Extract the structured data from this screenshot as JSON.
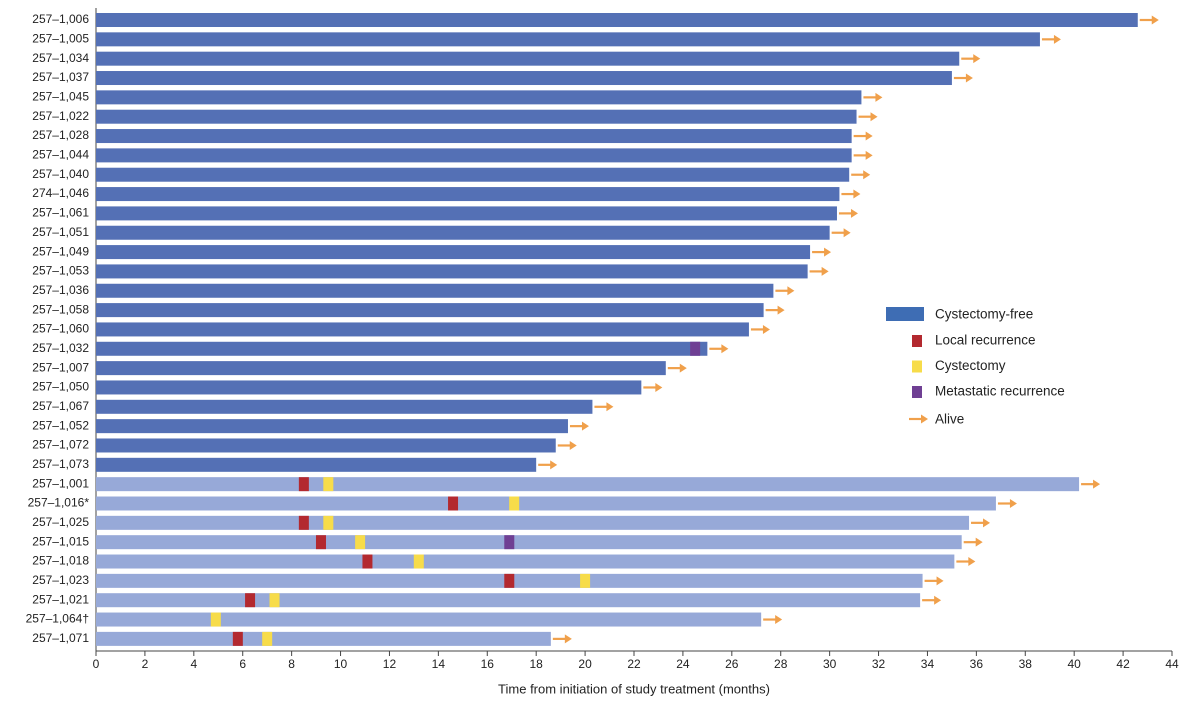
{
  "chart_data": {
    "type": "swimmer",
    "xlabel": "Time from initiation of study treatment (months)",
    "xlim": [
      0,
      44
    ],
    "xticks": [
      0,
      2,
      4,
      6,
      8,
      10,
      12,
      14,
      16,
      18,
      20,
      22,
      24,
      26,
      28,
      30,
      32,
      34,
      36,
      38,
      40,
      42,
      44
    ],
    "categories": [
      "257–1,006",
      "257–1,005",
      "257–1,034",
      "257–1,037",
      "257–1,045",
      "257–1,022",
      "257–1,028",
      "257–1,044",
      "257–1,040",
      "274–1,046",
      "257–1,061",
      "257–1,051",
      "257–1,049",
      "257–1,053",
      "257–1,036",
      "257–1,058",
      "257–1,060",
      "257–1,032",
      "257–1,007",
      "257–1,050",
      "257–1,067",
      "257–1,052",
      "257–1,072",
      "257–1,073",
      "257–1,001",
      "257–1,016*",
      "257–1,025",
      "257–1,015",
      "257–1,018",
      "257–1,023",
      "257–1,021",
      "257–1,064†",
      "257–1,071"
    ],
    "values": [
      42.6,
      38.6,
      35.3,
      35.0,
      31.3,
      31.1,
      30.9,
      30.9,
      30.8,
      30.4,
      30.3,
      30.0,
      29.2,
      29.1,
      27.7,
      27.3,
      26.7,
      25.0,
      23.3,
      22.3,
      20.3,
      19.3,
      18.8,
      18.0,
      40.2,
      36.8,
      35.7,
      35.4,
      35.1,
      33.8,
      33.7,
      27.2,
      18.6
    ],
    "bar_series": {
      "name": "Cystectomy-free",
      "color": "#5470b5",
      "legend_color": "#3e6db4"
    },
    "other_bar_color": "#97a9d8",
    "cystectomy_free": [
      true,
      true,
      true,
      true,
      true,
      true,
      true,
      true,
      true,
      true,
      true,
      true,
      true,
      true,
      true,
      true,
      true,
      true,
      true,
      true,
      true,
      true,
      true,
      true,
      false,
      false,
      false,
      false,
      false,
      false,
      false,
      false,
      false
    ],
    "series": [
      {
        "name": "Local recurrence",
        "color": "#b3292f",
        "values": [
          null,
          null,
          null,
          null,
          null,
          null,
          null,
          null,
          null,
          null,
          null,
          null,
          null,
          null,
          null,
          null,
          null,
          null,
          null,
          null,
          null,
          null,
          null,
          null,
          8.5,
          14.6,
          8.5,
          9.2,
          11.1,
          16.9,
          6.3,
          null,
          5.8
        ]
      },
      {
        "name": "Cystectomy",
        "color": "#f7dc4a",
        "values": [
          null,
          null,
          null,
          null,
          null,
          null,
          null,
          null,
          null,
          null,
          null,
          null,
          null,
          null,
          null,
          null,
          null,
          null,
          null,
          null,
          null,
          null,
          null,
          null,
          9.5,
          17.1,
          9.5,
          10.8,
          13.2,
          20.0,
          7.3,
          4.9,
          7.0
        ]
      },
      {
        "name": "Metastatic recurrence",
        "color": "#6f3f93",
        "values": [
          null,
          null,
          null,
          null,
          null,
          null,
          null,
          null,
          null,
          null,
          null,
          null,
          null,
          null,
          null,
          null,
          null,
          24.5,
          null,
          null,
          null,
          null,
          null,
          null,
          null,
          null,
          null,
          16.9,
          null,
          null,
          null,
          null,
          null
        ]
      }
    ],
    "alive": {
      "name": "Alive",
      "color": "#f0a04b",
      "values": [
        true,
        true,
        true,
        true,
        true,
        true,
        true,
        true,
        true,
        true,
        true,
        true,
        true,
        true,
        true,
        true,
        true,
        true,
        true,
        true,
        true,
        true,
        true,
        true,
        true,
        true,
        true,
        true,
        true,
        true,
        true,
        true,
        true
      ]
    }
  }
}
